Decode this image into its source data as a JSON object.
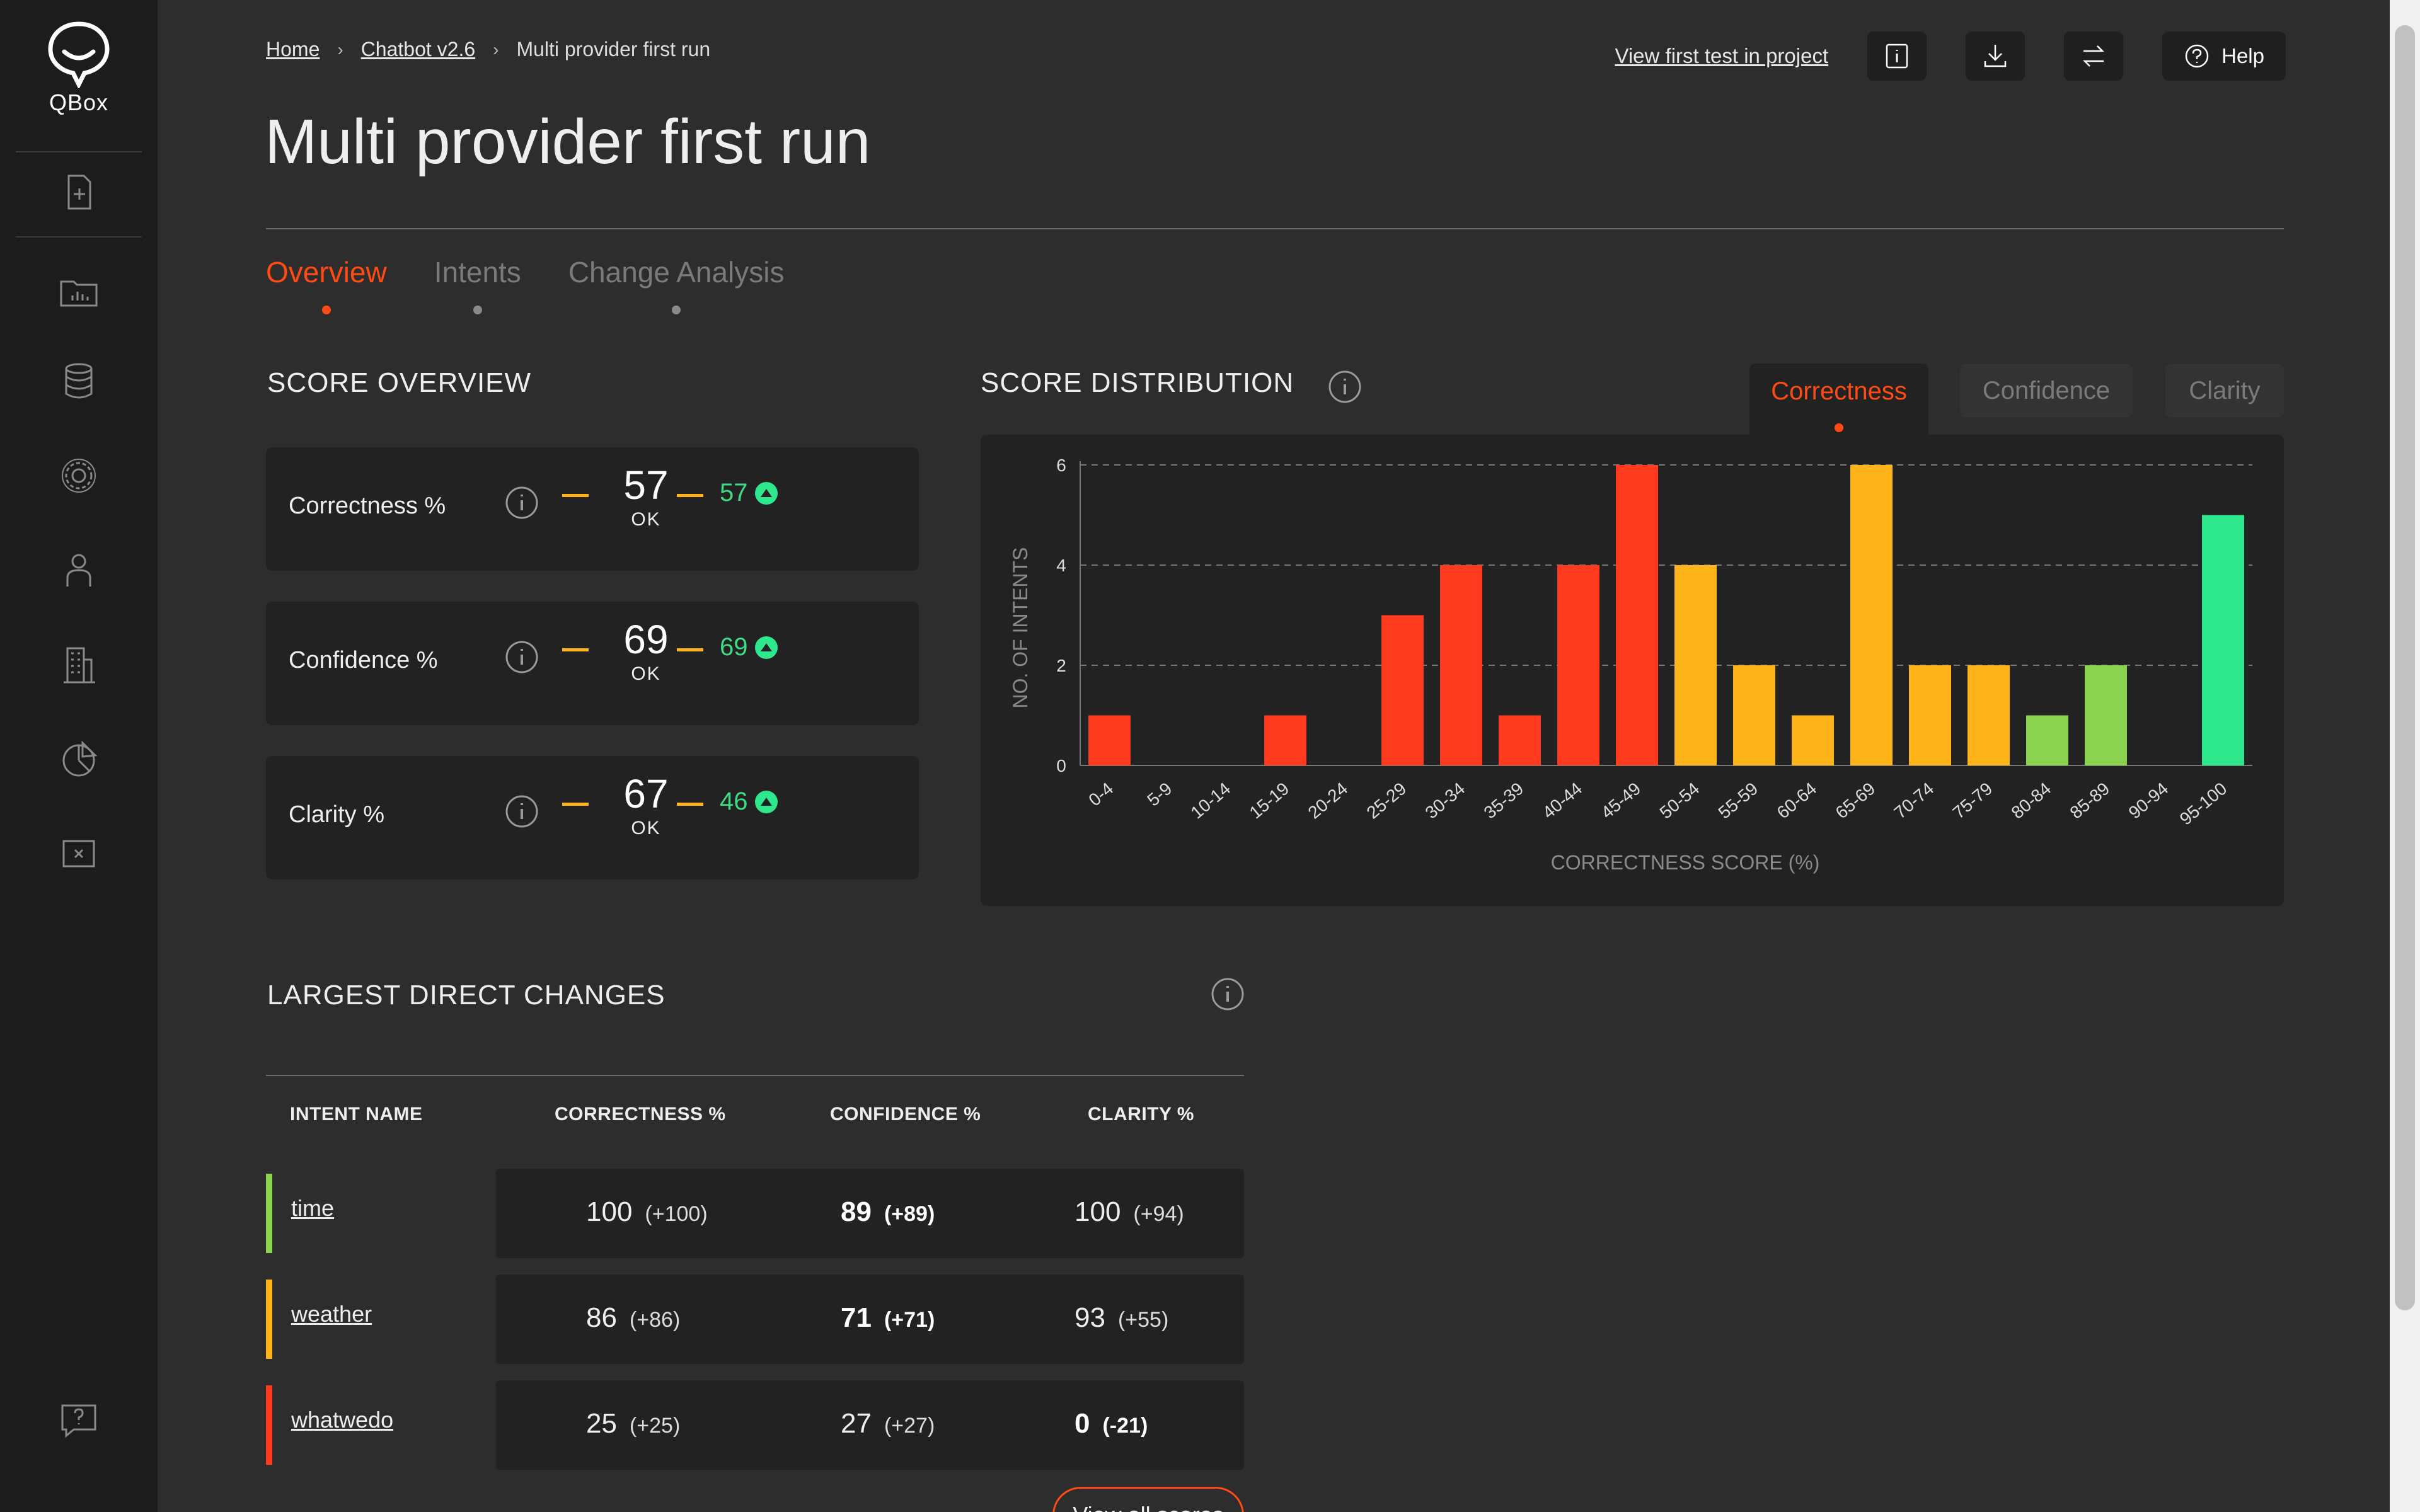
{
  "app": {
    "name": "QBox"
  },
  "breadcrumb": {
    "home": "Home",
    "project": "Chatbot v2.6",
    "current": "Multi provider first run"
  },
  "top_actions": {
    "view_first_test": "View first test in project",
    "help": "Help"
  },
  "page_title": "Multi provider first run",
  "tabs": [
    {
      "label": "Overview",
      "active": true
    },
    {
      "label": "Intents",
      "active": false
    },
    {
      "label": "Change Analysis",
      "active": false
    }
  ],
  "score_overview": {
    "title": "SCORE OVERVIEW",
    "cards": [
      {
        "label": "Correctness %",
        "score": "57",
        "status": "OK",
        "previous": "57"
      },
      {
        "label": "Confidence %",
        "score": "69",
        "status": "OK",
        "previous": "69"
      },
      {
        "label": "Clarity %",
        "score": "67",
        "status": "OK",
        "previous": "46"
      }
    ]
  },
  "score_distribution": {
    "title": "SCORE DISTRIBUTION",
    "toggles": [
      {
        "label": "Correctness",
        "active": true
      },
      {
        "label": "Confidence",
        "active": false
      },
      {
        "label": "Clarity",
        "active": false
      }
    ]
  },
  "colors": {
    "accent": "#ff4a14",
    "red": "#ff3a1f",
    "yellow": "#ffb41a",
    "lightgreen": "#8bd34e",
    "green": "#2fe88e"
  },
  "chart_data": {
    "type": "bar",
    "title": "",
    "xlabel": "CORRECTNESS SCORE (%)",
    "ylabel": "NO. OF INTENTS",
    "ylim": [
      0,
      6
    ],
    "yticks": [
      0,
      2,
      4,
      6
    ],
    "grid": true,
    "categories": [
      "0-4",
      "5-9",
      "10-14",
      "15-19",
      "20-24",
      "25-29",
      "30-34",
      "35-39",
      "40-44",
      "45-49",
      "50-54",
      "55-59",
      "60-64",
      "65-69",
      "70-74",
      "75-79",
      "80-84",
      "85-89",
      "90-94",
      "95-100"
    ],
    "values": [
      1,
      0,
      0,
      1,
      0,
      3,
      4,
      1,
      4,
      6,
      4,
      2,
      1,
      6,
      2,
      2,
      1,
      2,
      0,
      5
    ],
    "bar_colors": [
      "red",
      "red",
      "red",
      "red",
      "red",
      "red",
      "red",
      "red",
      "red",
      "red",
      "yellow",
      "yellow",
      "yellow",
      "yellow",
      "yellow",
      "yellow",
      "lightgreen",
      "lightgreen",
      "green",
      "green"
    ]
  },
  "largest_changes": {
    "title": "LARGEST DIRECT CHANGES",
    "headers": {
      "name": "INTENT NAME",
      "correctness": "CORRECTNESS %",
      "confidence": "CONFIDENCE %",
      "clarity": "CLARITY %"
    },
    "rows": [
      {
        "name": "time",
        "status": "lightgreen",
        "correctness": "100",
        "correctness_delta": "(+100)",
        "confidence": "89",
        "confidence_delta": "(+89)",
        "clarity": "100",
        "clarity_delta": "(+94)",
        "bold": "confidence"
      },
      {
        "name": "weather",
        "status": "yellow",
        "correctness": "86",
        "correctness_delta": "(+86)",
        "confidence": "71",
        "confidence_delta": "(+71)",
        "clarity": "93",
        "clarity_delta": "(+55)",
        "bold": "confidence"
      },
      {
        "name": "whatwedo",
        "status": "red",
        "correctness": "25",
        "correctness_delta": "(+25)",
        "confidence": "27",
        "confidence_delta": "(+27)",
        "clarity": "0",
        "clarity_delta": "(-21)",
        "bold": "clarity"
      }
    ],
    "view_all": "View all scores"
  }
}
